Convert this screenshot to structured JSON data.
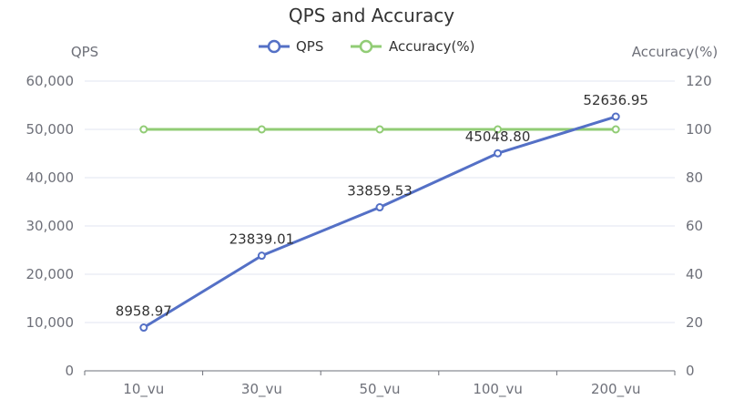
{
  "chart_data": {
    "type": "line",
    "title": "QPS and Accuracy",
    "categories": [
      "10_vu",
      "30_vu",
      "50_vu",
      "100_vu",
      "200_vu"
    ],
    "y_left": {
      "label": "QPS",
      "range": [
        0,
        60000
      ],
      "ticks": [
        0,
        10000,
        20000,
        30000,
        40000,
        50000,
        60000
      ],
      "tick_labels": [
        "0",
        "10,000",
        "20,000",
        "30,000",
        "40,000",
        "50,000",
        "60,000"
      ]
    },
    "y_right": {
      "label": "Accuracy(%)",
      "range": [
        0,
        120
      ],
      "ticks": [
        0,
        20,
        40,
        60,
        80,
        100,
        120
      ],
      "tick_labels": [
        "0",
        "20",
        "40",
        "60",
        "80",
        "100",
        "120"
      ]
    },
    "series": [
      {
        "name": "QPS",
        "axis": "left",
        "color": "#5470c6",
        "values": [
          8958.97,
          23839.01,
          33859.53,
          45048.8,
          52636.95
        ],
        "labels": [
          "8958.97",
          "23839.01",
          "33859.53",
          "45048.80",
          "52636.95"
        ]
      },
      {
        "name": "Accuracy(%)",
        "axis": "right",
        "color": "#91cc75",
        "values": [
          100,
          100,
          100,
          100,
          100
        ]
      }
    ],
    "grid": true,
    "legend_position": "top-center"
  }
}
